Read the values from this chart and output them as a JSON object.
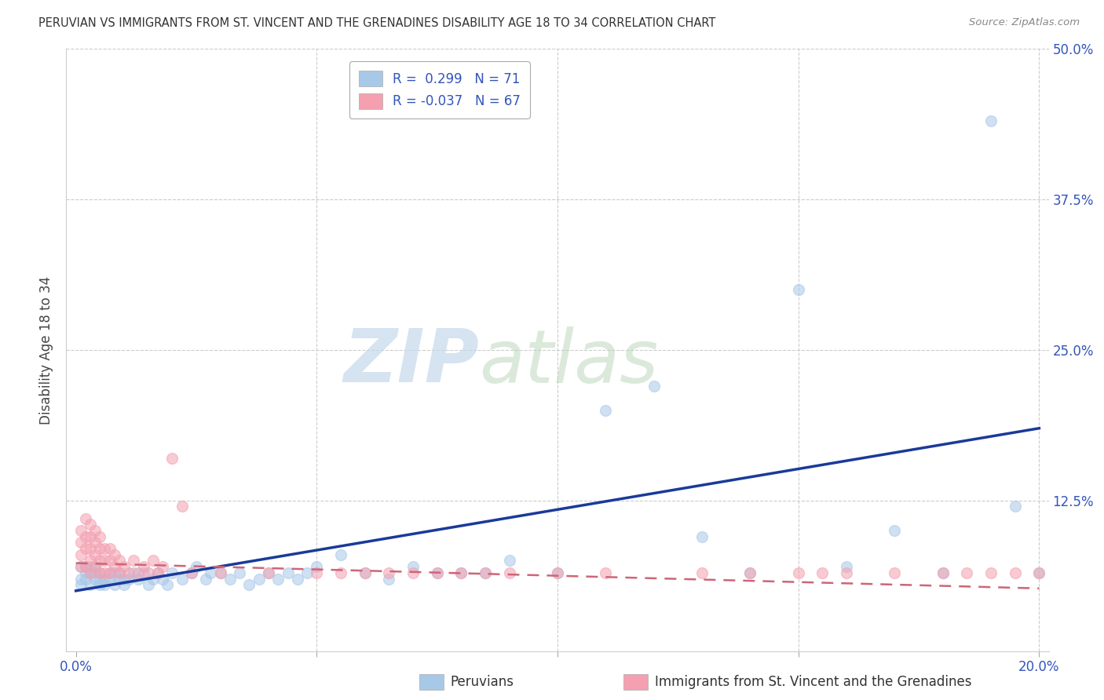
{
  "title": "PERUVIAN VS IMMIGRANTS FROM ST. VINCENT AND THE GRENADINES DISABILITY AGE 18 TO 34 CORRELATION CHART",
  "source": "Source: ZipAtlas.com",
  "xlabel_blue": "Peruvians",
  "xlabel_pink": "Immigrants from St. Vincent and the Grenadines",
  "ylabel": "Disability Age 18 to 34",
  "R_blue": 0.299,
  "N_blue": 71,
  "R_pink": -0.037,
  "N_pink": 67,
  "xlim": [
    -0.002,
    0.202
  ],
  "ylim": [
    0.0,
    0.5
  ],
  "color_blue": "#a8c8e8",
  "color_pink": "#f4a0b0",
  "color_trend_blue": "#1a3a9a",
  "color_trend_pink": "#cc6677",
  "watermark_zip": "ZIP",
  "watermark_atlas": "atlas",
  "blue_trend_x0": 0.0,
  "blue_trend_y0": 0.05,
  "blue_trend_x1": 0.2,
  "blue_trend_y1": 0.185,
  "pink_trend_x0": 0.0,
  "pink_trend_y0": 0.073,
  "pink_trend_x1": 0.2,
  "pink_trend_y1": 0.052,
  "blue_x": [
    0.001,
    0.001,
    0.001,
    0.002,
    0.002,
    0.002,
    0.003,
    0.003,
    0.003,
    0.004,
    0.004,
    0.004,
    0.005,
    0.005,
    0.005,
    0.006,
    0.006,
    0.007,
    0.007,
    0.008,
    0.008,
    0.009,
    0.009,
    0.01,
    0.01,
    0.011,
    0.012,
    0.013,
    0.014,
    0.015,
    0.016,
    0.017,
    0.018,
    0.019,
    0.02,
    0.022,
    0.024,
    0.025,
    0.027,
    0.028,
    0.03,
    0.032,
    0.034,
    0.036,
    0.038,
    0.04,
    0.042,
    0.044,
    0.046,
    0.048,
    0.05,
    0.055,
    0.06,
    0.065,
    0.07,
    0.075,
    0.08,
    0.085,
    0.09,
    0.1,
    0.11,
    0.12,
    0.13,
    0.14,
    0.15,
    0.16,
    0.17,
    0.18,
    0.19,
    0.195,
    0.2
  ],
  "blue_y": [
    0.06,
    0.07,
    0.055,
    0.065,
    0.06,
    0.07,
    0.055,
    0.065,
    0.07,
    0.06,
    0.065,
    0.07,
    0.055,
    0.06,
    0.065,
    0.06,
    0.055,
    0.06,
    0.065,
    0.055,
    0.065,
    0.06,
    0.065,
    0.055,
    0.06,
    0.06,
    0.065,
    0.06,
    0.065,
    0.055,
    0.06,
    0.065,
    0.06,
    0.055,
    0.065,
    0.06,
    0.065,
    0.07,
    0.06,
    0.065,
    0.065,
    0.06,
    0.065,
    0.055,
    0.06,
    0.065,
    0.06,
    0.065,
    0.06,
    0.065,
    0.07,
    0.08,
    0.065,
    0.06,
    0.07,
    0.065,
    0.065,
    0.065,
    0.075,
    0.065,
    0.2,
    0.22,
    0.095,
    0.065,
    0.3,
    0.07,
    0.1,
    0.065,
    0.44,
    0.12,
    0.065
  ],
  "pink_x": [
    0.001,
    0.001,
    0.001,
    0.001,
    0.002,
    0.002,
    0.002,
    0.002,
    0.003,
    0.003,
    0.003,
    0.003,
    0.003,
    0.004,
    0.004,
    0.004,
    0.004,
    0.005,
    0.005,
    0.005,
    0.005,
    0.006,
    0.006,
    0.006,
    0.007,
    0.007,
    0.007,
    0.008,
    0.008,
    0.009,
    0.009,
    0.01,
    0.011,
    0.012,
    0.013,
    0.014,
    0.015,
    0.016,
    0.017,
    0.018,
    0.02,
    0.022,
    0.024,
    0.03,
    0.04,
    0.05,
    0.055,
    0.06,
    0.065,
    0.07,
    0.075,
    0.08,
    0.085,
    0.09,
    0.1,
    0.11,
    0.13,
    0.14,
    0.15,
    0.155,
    0.16,
    0.17,
    0.18,
    0.185,
    0.19,
    0.195,
    0.2
  ],
  "pink_y": [
    0.07,
    0.08,
    0.09,
    0.1,
    0.07,
    0.085,
    0.095,
    0.11,
    0.065,
    0.075,
    0.085,
    0.095,
    0.105,
    0.07,
    0.08,
    0.09,
    0.1,
    0.065,
    0.075,
    0.085,
    0.095,
    0.065,
    0.075,
    0.085,
    0.065,
    0.075,
    0.085,
    0.07,
    0.08,
    0.065,
    0.075,
    0.07,
    0.065,
    0.075,
    0.065,
    0.07,
    0.065,
    0.075,
    0.065,
    0.07,
    0.16,
    0.12,
    0.065,
    0.065,
    0.065,
    0.065,
    0.065,
    0.065,
    0.065,
    0.065,
    0.065,
    0.065,
    0.065,
    0.065,
    0.065,
    0.065,
    0.065,
    0.065,
    0.065,
    0.065,
    0.065,
    0.065,
    0.065,
    0.065,
    0.065,
    0.065,
    0.065
  ]
}
